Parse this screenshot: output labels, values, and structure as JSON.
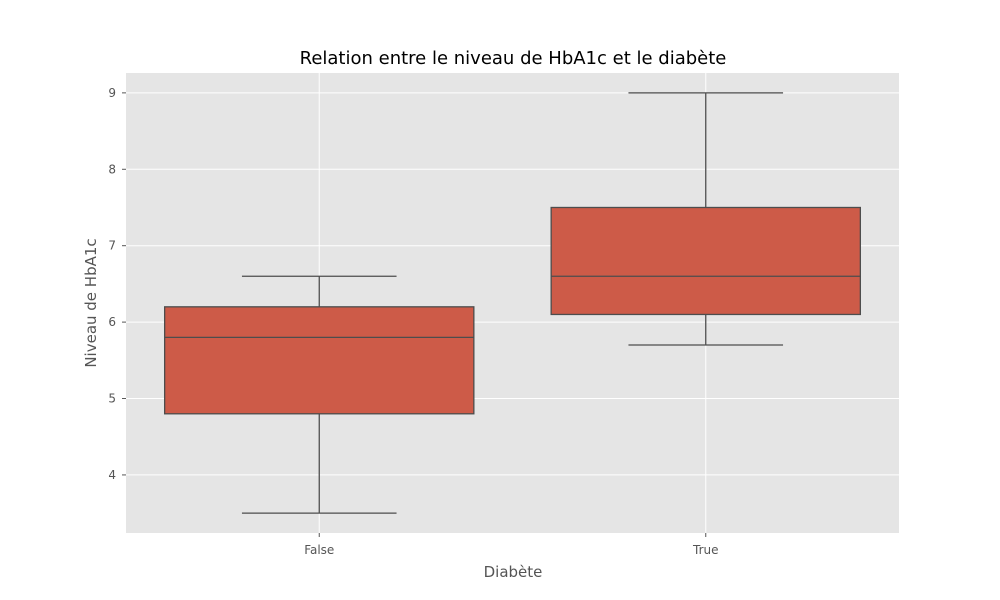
{
  "chart_data": {
    "type": "box",
    "title": "Relation entre le niveau de HbA1c et le diabète",
    "xlabel": "Diabète",
    "ylabel": "Niveau de HbA1c",
    "categories": [
      "False",
      "True"
    ],
    "boxes": [
      {
        "category": "False",
        "whisker_low": 3.5,
        "q1": 4.8,
        "median": 5.8,
        "q3": 6.2,
        "whisker_high": 6.6
      },
      {
        "category": "True",
        "whisker_low": 5.7,
        "q1": 6.1,
        "median": 6.6,
        "q3": 7.5,
        "whisker_high": 9.0
      }
    ],
    "yticks": [
      4,
      5,
      6,
      7,
      8,
      9
    ],
    "ylim": [
      3.24,
      9.26
    ],
    "grid": true,
    "style": "ggplot",
    "colors": {
      "box_fill": "#cd5b48",
      "box_edge": "#4d4d4d",
      "plot_background": "#e5e5e5",
      "grid": "#ffffff"
    }
  }
}
